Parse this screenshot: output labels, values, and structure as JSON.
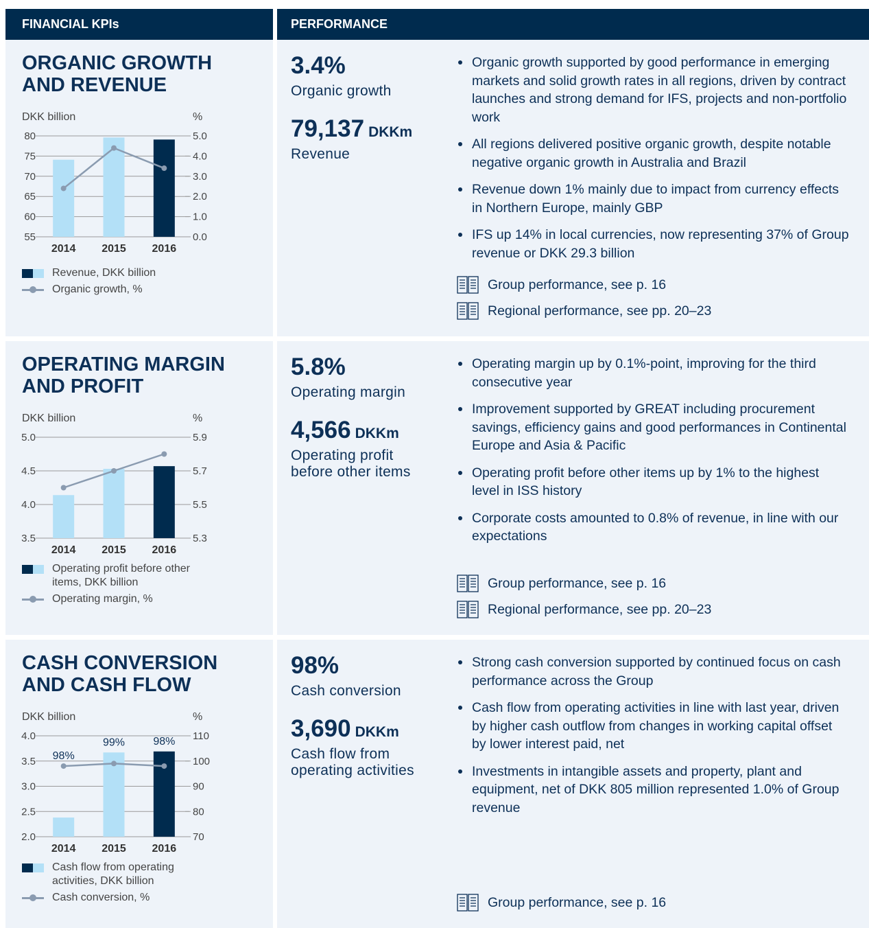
{
  "header": {
    "left": "FINANCIAL KPIs",
    "right": "PERFORMANCE"
  },
  "sections": [
    {
      "title": "ORGANIC GROWTH AND REVENUE",
      "kpis": [
        {
          "value": "3.4%",
          "label": "Organic growth"
        },
        {
          "value": "79,137",
          "unit": "DKKm",
          "label": "Revenue"
        }
      ],
      "bullets": [
        "Organic growth supported by good performance in emerging markets and solid growth rates in all regions, driven by contract launches and strong demand for IFS, projects and non-portfolio work",
        "All regions delivered positive organic growth, despite notable negative organic growth in Australia and Brazil",
        "Revenue down 1% mainly due to impact from currency effects in Northern Europe, mainly GBP",
        "IFS up 14% in local currencies, now representing 37% of Group revenue or DKK 29.3 billion"
      ],
      "refs": [
        "Group performance, see p. 16",
        "Regional performance, see pp. 20–23"
      ]
    },
    {
      "title": "OPERATING MARGIN AND PROFIT",
      "kpis": [
        {
          "value": "5.8%",
          "label": "Operating margin"
        },
        {
          "value": "4,566",
          "unit": "DKKm",
          "label": "Operating profit before other items"
        }
      ],
      "bullets": [
        "Operating margin up by 0.1%-point, improving for the third consecutive year",
        "Improvement supported by GREAT including procurement savings, efficiency gains and good performances in Continental Europe and Asia & Pacific",
        "Operating profit before other items up by 1% to the highest level in ISS history",
        "Corporate costs amounted to 0.8% of revenue, in line with our expectations"
      ],
      "refs": [
        "Group performance, see p. 16",
        "Regional performance, see pp. 20–23"
      ]
    },
    {
      "title": "CASH CONVERSION AND CASH FLOW",
      "kpis": [
        {
          "value": "98%",
          "label": "Cash conversion"
        },
        {
          "value": "3,690",
          "unit": "DKKm",
          "label": "Cash flow from operating activities"
        }
      ],
      "bullets": [
        "Strong cash conversion supported by continued focus on cash performance across the Group",
        "Cash flow from operating activities in line with last year, driven by higher cash outflow from changes in working capital offset by lower interest paid, net",
        "Investments in intangible assets and property, plant and equipment, net of DKK 805 million represented 1.0% of Group revenue"
      ],
      "refs": [
        "Group performance, see p. 16"
      ]
    }
  ],
  "chart_data": [
    {
      "type": "bar",
      "ylabel": "DKK billion",
      "y2label": "%",
      "categories": [
        "2014",
        "2015",
        "2016"
      ],
      "ylim": [
        55,
        80
      ],
      "yticks": [
        55,
        60,
        65,
        70,
        75,
        80
      ],
      "y2lim": [
        0,
        5
      ],
      "y2ticks": [
        {
          "value": 0,
          "label": "0.0"
        },
        {
          "value": 1,
          "label": "1.0"
        },
        {
          "value": 2,
          "label": "2.0"
        },
        {
          "value": 3,
          "label": "3.0"
        },
        {
          "value": 4,
          "label": "4.0"
        },
        {
          "value": 5,
          "label": "5.0"
        }
      ],
      "series": [
        {
          "name": "Revenue, DKK billion",
          "colors": [
            "#b3e0f7",
            "#b3e0f7",
            "#002b4e"
          ],
          "values": [
            74.1,
            79.6,
            79.1
          ]
        },
        {
          "name": "Organic growth, %",
          "color": "#8a9bb0",
          "axis": "y2",
          "values": [
            2.4,
            4.4,
            3.4
          ]
        }
      ]
    },
    {
      "type": "bar",
      "ylabel": "DKK billion",
      "y2label": "%",
      "categories": [
        "2014",
        "2015",
        "2016"
      ],
      "ylim": [
        3.5,
        5
      ],
      "yticks": [
        3.5,
        {
          "value": 4,
          "label": "4.0"
        },
        4.5,
        {
          "value": 5,
          "label": "5.0"
        }
      ],
      "y2lim": [
        5.3,
        5.9
      ],
      "y2ticks": [
        5.3,
        5.5,
        5.7,
        5.9
      ],
      "series": [
        {
          "name": "Operating profit before other items, DKK billion",
          "colors": [
            "#b3e0f7",
            "#b3e0f7",
            "#002b4e"
          ],
          "values": [
            4.14,
            4.53,
            4.57
          ]
        },
        {
          "name": "Operating margin, %",
          "color": "#8a9bb0",
          "axis": "y2",
          "values": [
            5.6,
            5.7,
            5.8
          ]
        }
      ]
    },
    {
      "type": "bar",
      "ylabel": "DKK billion",
      "y2label": "%",
      "categories": [
        "2014",
        "2015",
        "2016"
      ],
      "ylim": [
        2,
        4
      ],
      "yticks": [
        {
          "value": 2,
          "label": "2.0"
        },
        2.5,
        {
          "value": 3,
          "label": "3.0"
        },
        3.5,
        {
          "value": 4,
          "label": "4.0"
        }
      ],
      "y2lim": [
        70,
        110
      ],
      "y2ticks": [
        70,
        80,
        90,
        100,
        110
      ],
      "series": [
        {
          "name": "Cash flow from operating activities, DKK billion",
          "colors": [
            "#b3e0f7",
            "#b3e0f7",
            "#002b4e"
          ],
          "values": [
            2.38,
            3.67,
            3.69
          ]
        },
        {
          "name": "Cash conversion, %",
          "color": "#8a9bb0",
          "axis": "y2",
          "values": [
            98,
            99,
            98
          ],
          "value_labels": [
            "98%",
            "99%",
            "98%"
          ]
        }
      ]
    }
  ]
}
